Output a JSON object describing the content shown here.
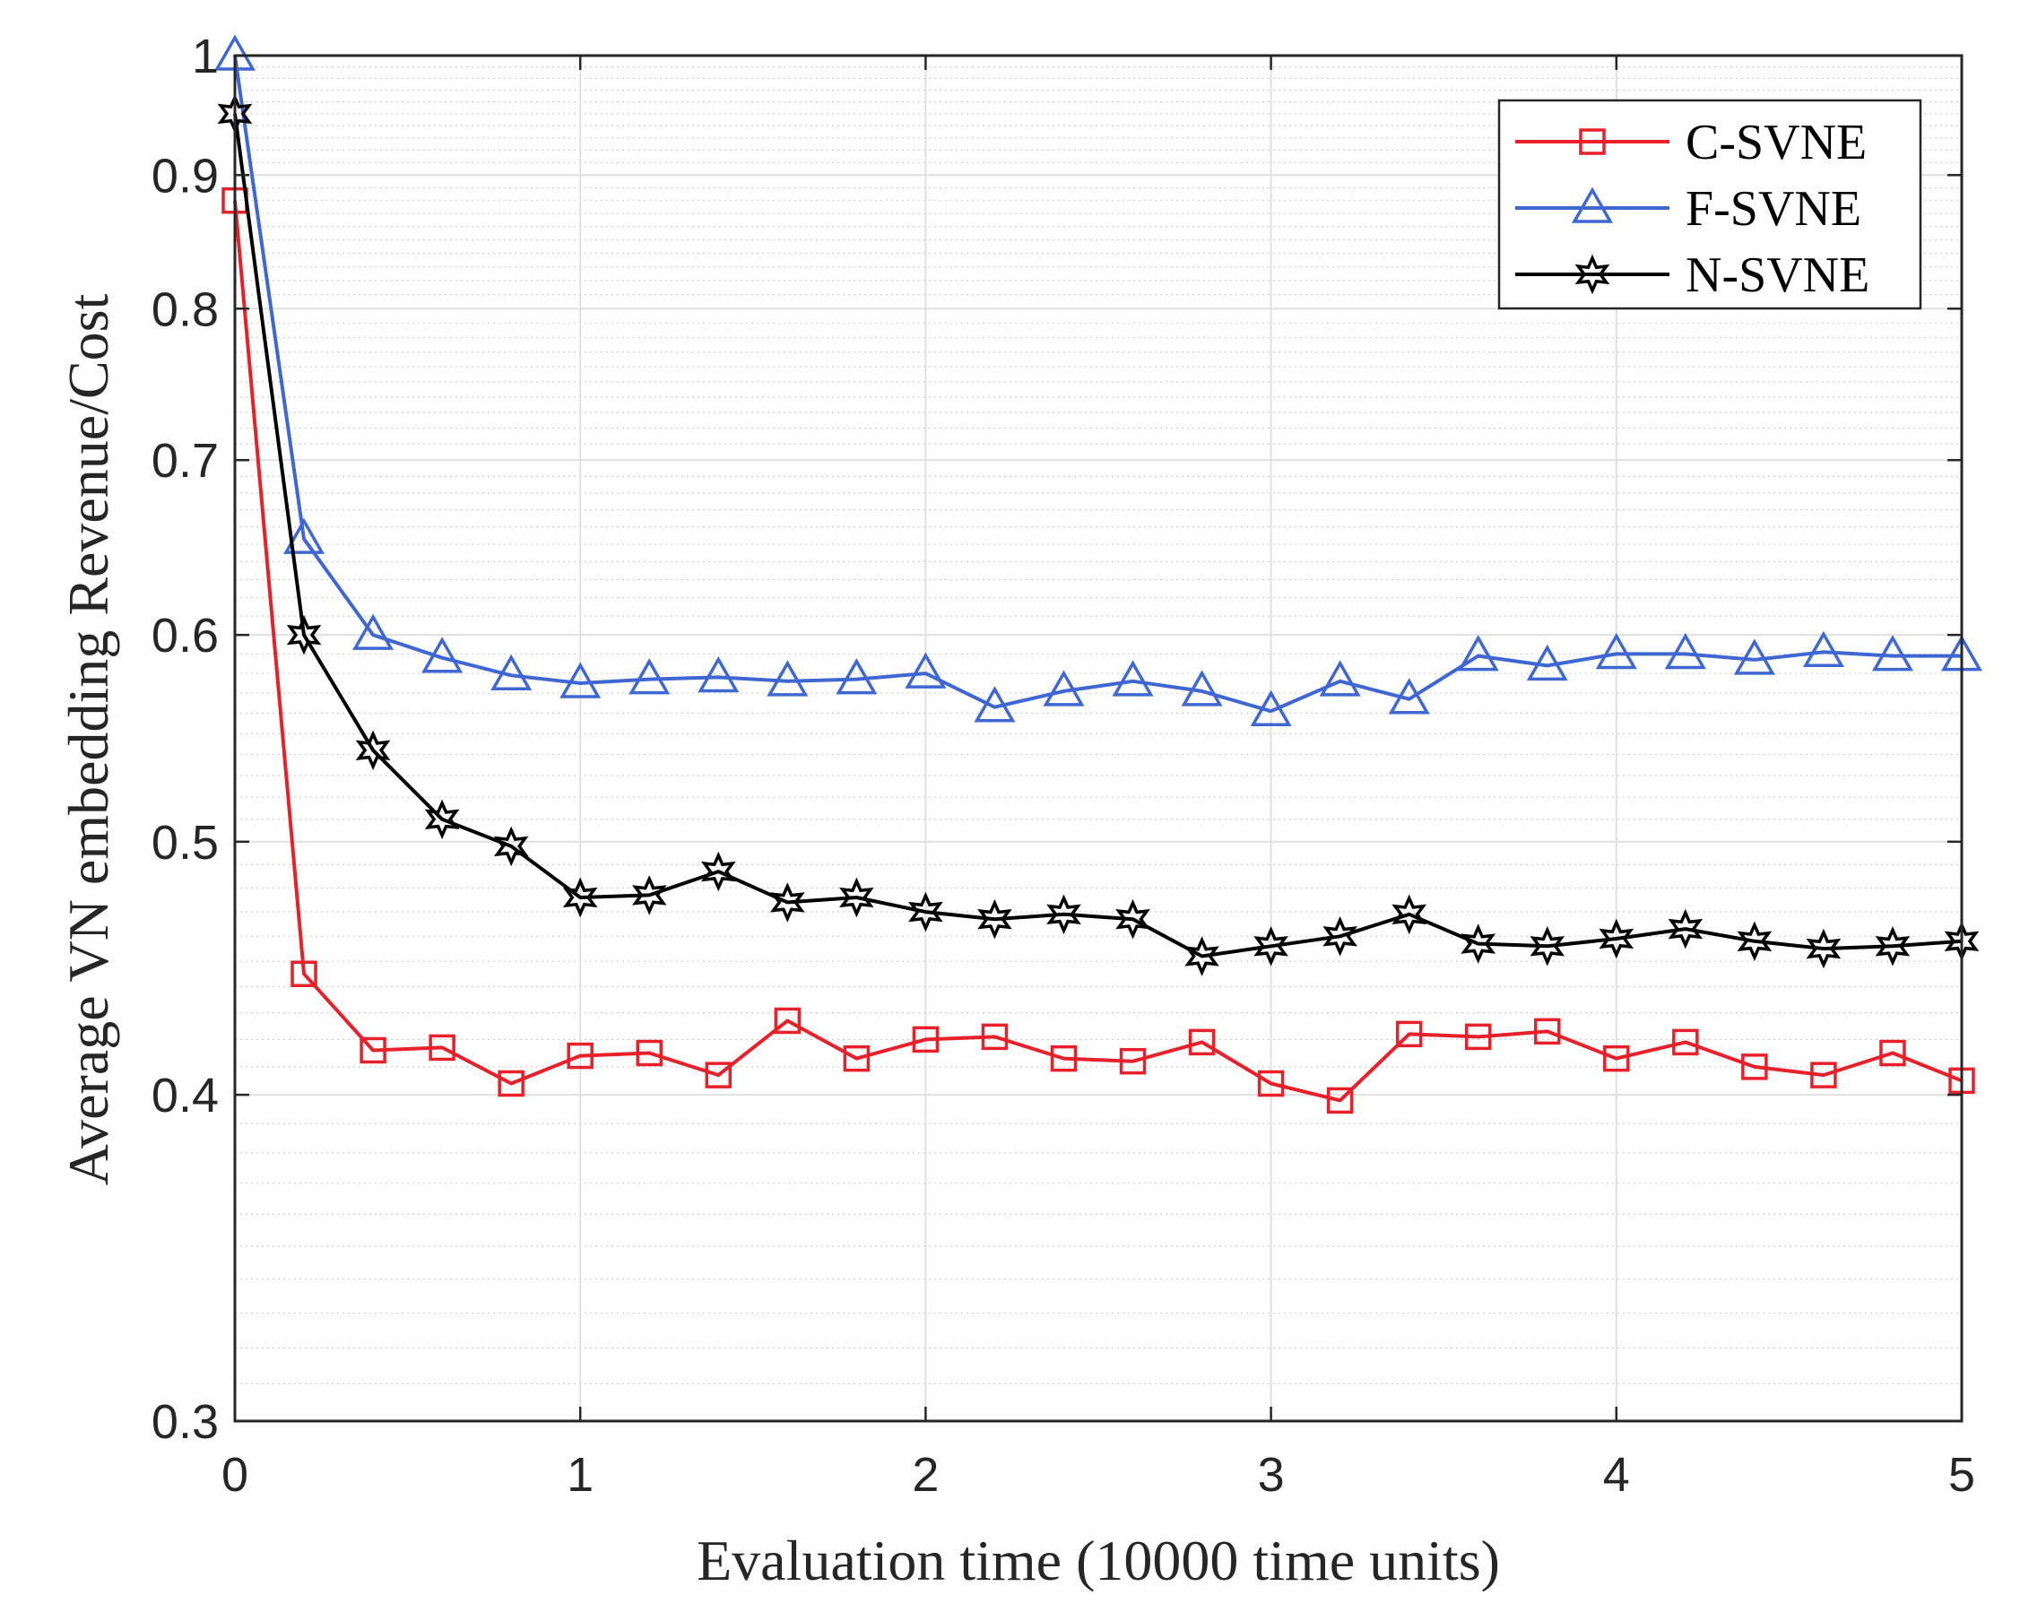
{
  "chart_data": {
    "type": "line",
    "title": "",
    "xlabel": "Evaluation time (10000 time units)",
    "ylabel": "Average VN embedding Revenue/Cost",
    "xlim": [
      0,
      5
    ],
    "ylim": [
      0.3,
      1
    ],
    "yscale": "log",
    "grid": true,
    "minor_grid": true,
    "legend_position": "top-right",
    "xticks": [
      0,
      1,
      2,
      3,
      4,
      5
    ],
    "xtick_labels": [
      "0",
      "1",
      "2",
      "3",
      "4",
      "5"
    ],
    "yticks": [
      0.3,
      0.4,
      0.5,
      0.6,
      0.7,
      0.8,
      0.9,
      1
    ],
    "ytick_labels": [
      "0.3",
      "0.4",
      "0.5",
      "0.6",
      "0.7",
      "0.8",
      "0.9",
      "1"
    ],
    "x": [
      0,
      0.2,
      0.4,
      0.6,
      0.8,
      1.0,
      1.2,
      1.4,
      1.6,
      1.8,
      2.0,
      2.2,
      2.4,
      2.6,
      2.8,
      3.0,
      3.2,
      3.4,
      3.6,
      3.8,
      4.0,
      4.2,
      4.4,
      4.6,
      4.8,
      5.0
    ],
    "series": [
      {
        "name": "C-SVNE",
        "color": "#e8202a",
        "marker": "square",
        "values": [
          0.88,
          0.445,
          0.416,
          0.417,
          0.404,
          0.414,
          0.415,
          0.407,
          0.427,
          0.413,
          0.42,
          0.421,
          0.413,
          0.412,
          0.419,
          0.404,
          0.398,
          0.422,
          0.421,
          0.423,
          0.413,
          0.419,
          0.41,
          0.407,
          0.415,
          0.405
        ]
      },
      {
        "name": "F-SVNE",
        "color": "#3f67d4",
        "marker": "triangle",
        "values": [
          1.0,
          0.653,
          0.6,
          0.588,
          0.579,
          0.575,
          0.577,
          0.578,
          0.576,
          0.577,
          0.58,
          0.563,
          0.571,
          0.576,
          0.571,
          0.561,
          0.576,
          0.567,
          0.589,
          0.584,
          0.59,
          0.59,
          0.587,
          0.591,
          0.589,
          0.589
        ]
      },
      {
        "name": "N-SVNE",
        "color": "#000000",
        "marker": "hexagram",
        "values": [
          0.95,
          0.6,
          0.542,
          0.51,
          0.498,
          0.476,
          0.477,
          0.487,
          0.474,
          0.476,
          0.47,
          0.467,
          0.469,
          0.467,
          0.452,
          0.456,
          0.46,
          0.469,
          0.457,
          0.456,
          0.459,
          0.463,
          0.458,
          0.455,
          0.456,
          0.458
        ]
      }
    ]
  }
}
